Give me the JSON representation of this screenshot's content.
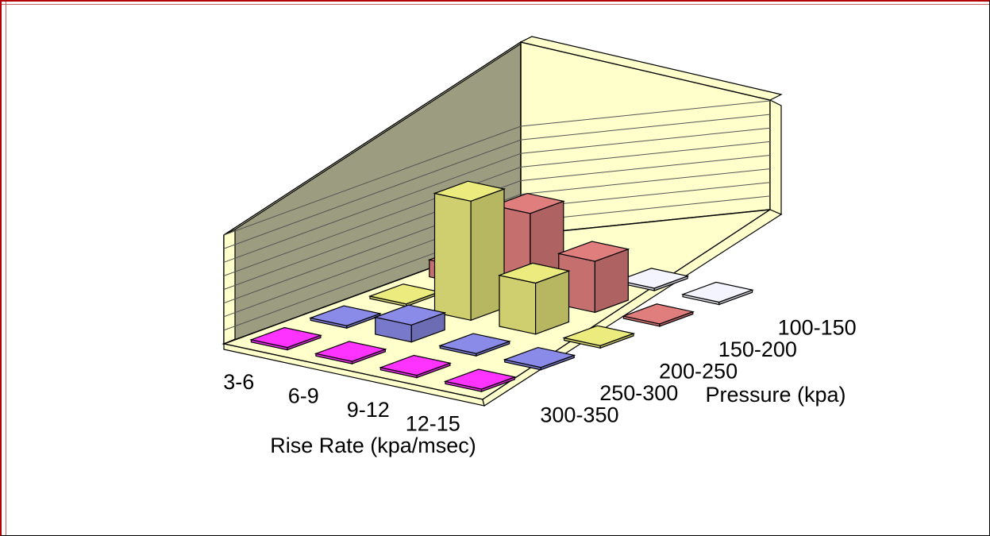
{
  "chart_data": {
    "type": "3d-bar",
    "xlabel": "Rise Rate (kpa/msec)",
    "ylabel": "Pressure (kpa)",
    "x_categories": [
      "3-6",
      "6-9",
      "9-12",
      "12-15"
    ],
    "y_categories": [
      "100-150",
      "150-200",
      "200-250",
      "250-300",
      "300-350"
    ],
    "series_colors": {
      "100-150": "#f4f4ff",
      "150-200": "#e07e7e",
      "200-250": "#ebeb7e",
      "250-300": "#8a8ae8",
      "300-350": "#ff33ff"
    },
    "wall_color": "#9c9c80",
    "floor_color": "#ffffcc",
    "grid": true,
    "values": [
      {
        "rise_rate": "3-6",
        "pressure": "100-150",
        "value": 0
      },
      {
        "rise_rate": "6-9",
        "pressure": "100-150",
        "value": 0
      },
      {
        "rise_rate": "9-12",
        "pressure": "100-150",
        "value": 0
      },
      {
        "rise_rate": "12-15",
        "pressure": "100-150",
        "value": 0
      },
      {
        "rise_rate": "3-6",
        "pressure": "150-200",
        "value": 1
      },
      {
        "rise_rate": "6-9",
        "pressure": "150-200",
        "value": 5
      },
      {
        "rise_rate": "9-12",
        "pressure": "150-200",
        "value": 3
      },
      {
        "rise_rate": "12-15",
        "pressure": "150-200",
        "value": 0
      },
      {
        "rise_rate": "3-6",
        "pressure": "200-250",
        "value": 0
      },
      {
        "rise_rate": "6-9",
        "pressure": "200-250",
        "value": 7
      },
      {
        "rise_rate": "9-12",
        "pressure": "200-250",
        "value": 3
      },
      {
        "rise_rate": "12-15",
        "pressure": "200-250",
        "value": 0
      },
      {
        "rise_rate": "3-6",
        "pressure": "250-300",
        "value": 0
      },
      {
        "rise_rate": "6-9",
        "pressure": "250-300",
        "value": 1
      },
      {
        "rise_rate": "9-12",
        "pressure": "250-300",
        "value": 0
      },
      {
        "rise_rate": "12-15",
        "pressure": "250-300",
        "value": 0
      },
      {
        "rise_rate": "3-6",
        "pressure": "300-350",
        "value": 0
      },
      {
        "rise_rate": "6-9",
        "pressure": "300-350",
        "value": 0
      },
      {
        "rise_rate": "9-12",
        "pressure": "300-350",
        "value": 0
      },
      {
        "rise_rate": "12-15",
        "pressure": "300-350",
        "value": 0
      }
    ],
    "zlim": [
      0,
      8
    ]
  }
}
